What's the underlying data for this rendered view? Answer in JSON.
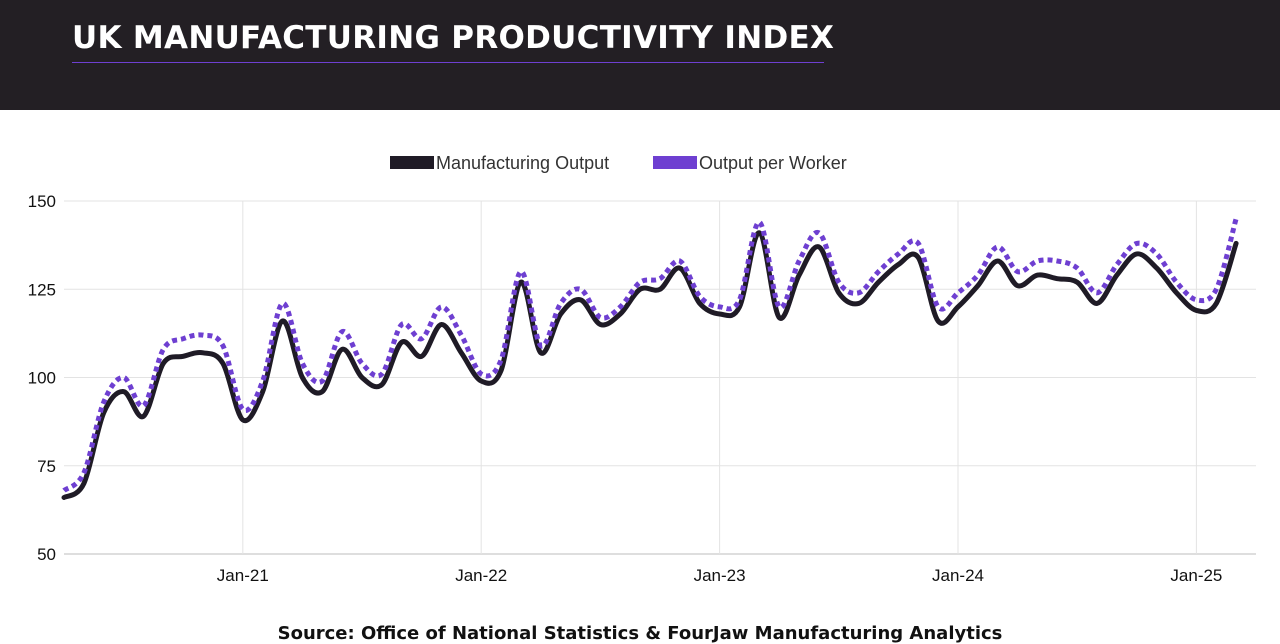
{
  "header": {
    "title": "UK MANUFACTURING PRODUCTIVITY INDEX"
  },
  "colors": {
    "header_bg": "#231f24",
    "accent": "#6e3fd1",
    "output_line": "#1f1b26",
    "per_worker_line": "#6e3fd1"
  },
  "chart_data": {
    "type": "line",
    "title": "",
    "xlabel": "",
    "ylabel": "",
    "ylim": [
      50,
      150
    ],
    "yticks": [
      50,
      75,
      100,
      125,
      150
    ],
    "xlim": [
      "2020-04",
      "2025-04"
    ],
    "xticks": [
      {
        "date": "2021-01",
        "label": "Jan-21"
      },
      {
        "date": "2022-01",
        "label": "Jan-22"
      },
      {
        "date": "2023-01",
        "label": "Jan-23"
      },
      {
        "date": "2024-01",
        "label": "Jan-24"
      },
      {
        "date": "2025-01",
        "label": "Jan-25"
      }
    ],
    "grid": true,
    "legend_position": "top-center",
    "x": [
      "2020-04",
      "2020-05",
      "2020-06",
      "2020-07",
      "2020-08",
      "2020-09",
      "2020-10",
      "2020-11",
      "2020-12",
      "2021-01",
      "2021-02",
      "2021-03",
      "2021-04",
      "2021-05",
      "2021-06",
      "2021-07",
      "2021-08",
      "2021-09",
      "2021-10",
      "2021-11",
      "2021-12",
      "2022-01",
      "2022-02",
      "2022-03",
      "2022-04",
      "2022-05",
      "2022-06",
      "2022-07",
      "2022-08",
      "2022-09",
      "2022-10",
      "2022-11",
      "2022-12",
      "2023-01",
      "2023-02",
      "2023-03",
      "2023-04",
      "2023-05",
      "2023-06",
      "2023-07",
      "2023-08",
      "2023-09",
      "2023-10",
      "2023-11",
      "2023-12",
      "2024-01",
      "2024-02",
      "2024-03",
      "2024-04",
      "2024-05",
      "2024-06",
      "2024-07",
      "2024-08",
      "2024-09",
      "2024-10",
      "2024-11",
      "2024-12",
      "2025-01",
      "2025-02",
      "2025-03"
    ],
    "series": [
      {
        "name": "Manufacturing Output",
        "values": [
          66,
          70,
          90,
          96,
          89,
          104,
          106,
          107,
          104,
          88,
          96,
          116,
          100,
          96,
          108,
          100,
          98,
          110,
          106,
          115,
          107,
          99,
          102,
          127,
          107,
          118,
          122,
          115,
          118,
          125,
          125,
          131,
          121,
          118,
          120,
          141,
          117,
          129,
          137,
          124,
          121,
          127,
          132,
          134,
          116,
          120,
          126,
          133,
          126,
          129,
          128,
          127,
          121,
          129,
          135,
          131,
          124,
          119,
          121,
          138
        ]
      },
      {
        "name": "Output per Worker",
        "values": [
          68,
          73,
          93,
          100,
          92,
          108,
          111,
          112,
          109,
          91,
          99,
          121,
          104,
          99,
          113,
          104,
          101,
          115,
          111,
          120,
          112,
          101,
          105,
          130,
          109,
          121,
          125,
          117,
          120,
          127,
          128,
          133,
          123,
          120,
          122,
          144,
          120,
          133,
          141,
          127,
          124,
          130,
          135,
          138,
          120,
          124,
          129,
          137,
          130,
          133,
          133,
          131,
          124,
          132,
          138,
          135,
          127,
          122,
          125,
          145
        ]
      }
    ]
  },
  "source": {
    "text": "Source: Office of National Statistics & FourJaw Manufacturing Analytics"
  }
}
